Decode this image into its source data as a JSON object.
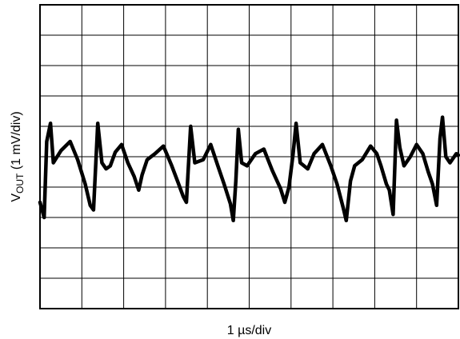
{
  "chart_data": {
    "type": "line",
    "title": "",
    "xlabel": "1 µs/div",
    "ylabel": {
      "main": "V",
      "subscript": "OUT",
      "rest": " (1 mV/div)"
    },
    "grid": true,
    "divisions": {
      "x": 10,
      "y": 10
    },
    "x_unit": "div",
    "y_unit": "div",
    "xlim": [
      0,
      10
    ],
    "ylim": [
      -5,
      5
    ],
    "series": [
      {
        "color": "#000000",
        "points": [
          [
            0.0,
            -1.5
          ],
          [
            0.1,
            -2.0
          ],
          [
            0.16,
            0.5
          ],
          [
            0.25,
            1.1
          ],
          [
            0.32,
            -0.2
          ],
          [
            0.5,
            0.2
          ],
          [
            0.72,
            0.5
          ],
          [
            0.9,
            -0.1
          ],
          [
            1.08,
            -0.9
          ],
          [
            1.2,
            -1.6
          ],
          [
            1.28,
            -1.75
          ],
          [
            1.38,
            1.1
          ],
          [
            1.48,
            -0.2
          ],
          [
            1.58,
            -0.4
          ],
          [
            1.68,
            -0.3
          ],
          [
            1.8,
            0.15
          ],
          [
            1.95,
            0.4
          ],
          [
            2.1,
            -0.2
          ],
          [
            2.25,
            -0.65
          ],
          [
            2.36,
            -1.1
          ],
          [
            2.44,
            -0.6
          ],
          [
            2.56,
            -0.1
          ],
          [
            2.75,
            0.1
          ],
          [
            2.95,
            0.35
          ],
          [
            3.15,
            -0.3
          ],
          [
            3.3,
            -0.85
          ],
          [
            3.42,
            -1.3
          ],
          [
            3.5,
            -1.5
          ],
          [
            3.6,
            1.0
          ],
          [
            3.7,
            -0.2
          ],
          [
            3.9,
            -0.1
          ],
          [
            4.08,
            0.4
          ],
          [
            4.25,
            -0.3
          ],
          [
            4.4,
            -0.9
          ],
          [
            4.55,
            -1.55
          ],
          [
            4.62,
            -2.1
          ],
          [
            4.68,
            -0.8
          ],
          [
            4.74,
            0.9
          ],
          [
            4.82,
            -0.2
          ],
          [
            4.95,
            -0.3
          ],
          [
            5.15,
            0.1
          ],
          [
            5.35,
            0.25
          ],
          [
            5.55,
            -0.45
          ],
          [
            5.75,
            -1.05
          ],
          [
            5.85,
            -1.5
          ],
          [
            5.95,
            -1.0
          ],
          [
            6.05,
            0.1
          ],
          [
            6.12,
            1.1
          ],
          [
            6.22,
            -0.2
          ],
          [
            6.4,
            -0.4
          ],
          [
            6.55,
            0.1
          ],
          [
            6.75,
            0.4
          ],
          [
            6.95,
            -0.3
          ],
          [
            7.1,
            -0.9
          ],
          [
            7.25,
            -1.7
          ],
          [
            7.32,
            -2.1
          ],
          [
            7.42,
            -0.8
          ],
          [
            7.52,
            -0.3
          ],
          [
            7.7,
            -0.1
          ],
          [
            7.9,
            0.35
          ],
          [
            8.05,
            0.1
          ],
          [
            8.15,
            -0.3
          ],
          [
            8.28,
            -0.9
          ],
          [
            8.35,
            -1.1
          ],
          [
            8.44,
            -1.9
          ],
          [
            8.52,
            1.2
          ],
          [
            8.6,
            0.3
          ],
          [
            8.7,
            -0.3
          ],
          [
            8.85,
            0.0
          ],
          [
            9.0,
            0.4
          ],
          [
            9.15,
            0.1
          ],
          [
            9.28,
            -0.5
          ],
          [
            9.38,
            -0.9
          ],
          [
            9.48,
            -1.6
          ],
          [
            9.56,
            0.6
          ],
          [
            9.62,
            1.3
          ],
          [
            9.7,
            0.0
          ],
          [
            9.8,
            -0.2
          ],
          [
            9.95,
            0.1
          ],
          [
            10.0,
            0.05
          ]
        ]
      }
    ]
  }
}
